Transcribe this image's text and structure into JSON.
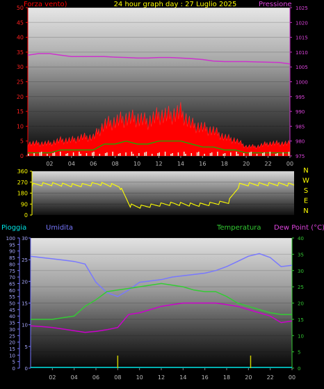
{
  "header": {
    "left_label": "Forza vento)",
    "title": "24 hour graph day : 27 Luglio 2025",
    "right_label": "Pressione"
  },
  "lower_header": {
    "rain_label": "Pioggia",
    "humidity_label": "Umidita",
    "temperature_label": "Temperatura",
    "dewpoint_label": "Dew Point (°C)"
  },
  "compass": [
    "N",
    "W",
    "S",
    "E",
    "N"
  ],
  "colors": {
    "wind": "#ff0000",
    "gust": "#00c000",
    "pressure": "#cc33cc",
    "direction": "#ffff00",
    "humidity": "#7878ff",
    "temperature": "#33cc33",
    "dewpoint": "#cc00cc",
    "rain": "#00e5e5",
    "header_title": "#ffff00"
  },
  "x_ticks": [
    "02",
    "04",
    "06",
    "08",
    "10",
    "12",
    "14",
    "16",
    "18",
    "20",
    "22",
    "00"
  ],
  "chart_data": [
    {
      "type": "area",
      "panel": "wind-pressure",
      "left_axis": {
        "label": "Forza vento)",
        "ylim": [
          0,
          50
        ],
        "ticks": [
          0,
          5,
          10,
          15,
          20,
          25,
          30,
          35,
          40,
          45,
          50
        ]
      },
      "right_axis": {
        "label": "Pressione",
        "ylim": [
          975,
          1025
        ],
        "ticks": [
          975,
          980,
          985,
          990,
          995,
          1000,
          1005,
          1010,
          1015,
          1020,
          1025
        ]
      },
      "x": [
        0,
        1,
        2,
        3,
        4,
        5,
        6,
        7,
        8,
        9,
        10,
        11,
        12,
        13,
        14,
        15,
        16,
        17,
        18,
        19,
        20,
        21,
        22,
        23,
        24
      ],
      "series": [
        {
          "key": "wind",
          "axis": "left",
          "values": [
            4,
            4,
            4,
            5,
            5,
            6,
            6,
            10,
            11,
            12,
            12,
            11,
            13,
            13,
            14,
            10,
            9,
            8,
            6,
            5,
            3,
            3,
            4,
            4,
            4
          ]
        },
        {
          "key": "gust",
          "axis": "left",
          "values": [
            1,
            1,
            1,
            2,
            2,
            2,
            2,
            4,
            4,
            5,
            4,
            4,
            5,
            5,
            5,
            4,
            3,
            3,
            2,
            2,
            1,
            1,
            1,
            1,
            1
          ]
        },
        {
          "key": "pressure",
          "axis": "right",
          "values": [
            1009,
            1009.5,
            1009.5,
            1009,
            1008.5,
            1008.5,
            1008.5,
            1008.5,
            1008.3,
            1008.2,
            1008,
            1008,
            1008.2,
            1008.2,
            1008,
            1007.8,
            1007.5,
            1007,
            1006.8,
            1006.8,
            1006.8,
            1006.7,
            1006.6,
            1006.5,
            1006
          ]
        }
      ]
    },
    {
      "type": "line",
      "panel": "wind-direction",
      "axis": {
        "ylim": [
          0,
          360
        ],
        "ticks": [
          0,
          90,
          180,
          270,
          360
        ]
      },
      "x": [
        0,
        1,
        2,
        3,
        4,
        5,
        6,
        7,
        8,
        9,
        10,
        11,
        12,
        13,
        14,
        15,
        16,
        17,
        18,
        19,
        20,
        21,
        22,
        23,
        24
      ],
      "series": [
        {
          "key": "direction",
          "values": [
            250,
            255,
            255,
            250,
            245,
            250,
            260,
            250,
            240,
            80,
            70,
            80,
            90,
            95,
            90,
            85,
            90,
            100,
            110,
            250,
            255,
            255,
            255,
            255,
            250
          ]
        }
      ]
    },
    {
      "type": "line",
      "panel": "humidity-temperature",
      "rain_axis": {
        "label": "Pioggia",
        "ylim": [
          0,
          100
        ],
        "ticks": [
          0,
          5,
          10,
          15,
          20,
          25,
          30,
          35,
          40,
          45,
          50,
          55,
          60,
          65,
          70,
          75,
          80,
          85,
          90,
          95,
          100
        ]
      },
      "humidity_axis": {
        "label": "Umidita",
        "ylim": [
          0,
          30
        ],
        "ticks": [
          0,
          5,
          10,
          15,
          20,
          25,
          30
        ]
      },
      "temperature_axis": {
        "label": "Temperatura",
        "ylim": [
          0,
          40
        ],
        "ticks": [
          0,
          5,
          10,
          15,
          20,
          25,
          30,
          35,
          40
        ]
      },
      "x": [
        0,
        1,
        2,
        3,
        4,
        5,
        6,
        7,
        8,
        9,
        10,
        11,
        12,
        13,
        14,
        15,
        16,
        17,
        18,
        19,
        20,
        21,
        22,
        23,
        24
      ],
      "series": [
        {
          "key": "humidity",
          "axis": "rain",
          "values": [
            86,
            85,
            84,
            83,
            82,
            80,
            66,
            58,
            55,
            60,
            66,
            67,
            68,
            70,
            71,
            72,
            73,
            75,
            78,
            82,
            86,
            88,
            85,
            78,
            79
          ]
        },
        {
          "key": "temperature",
          "axis": "temperature",
          "values": [
            15,
            15,
            15,
            15.5,
            16,
            19,
            21,
            23.5,
            24,
            24.5,
            25,
            25.5,
            26,
            25.5,
            25,
            24,
            23.5,
            23.5,
            22,
            20,
            19,
            18,
            17,
            16.5,
            16.5
          ]
        },
        {
          "key": "dewpoint",
          "axis": "temperature",
          "values": [
            13,
            12.8,
            12.5,
            12,
            11.5,
            11,
            11.3,
            11.8,
            12.5,
            16.5,
            17,
            18,
            19,
            19.5,
            20,
            20,
            20,
            20,
            19.5,
            19,
            18,
            17,
            16,
            14,
            14.5
          ]
        },
        {
          "key": "rain",
          "axis": "rain",
          "values": [
            0,
            0,
            0,
            0,
            0,
            0,
            0,
            0,
            0,
            0,
            0,
            0,
            0,
            0,
            0,
            0,
            0,
            0,
            0,
            0,
            0,
            0,
            0,
            0,
            0
          ]
        }
      ]
    }
  ]
}
